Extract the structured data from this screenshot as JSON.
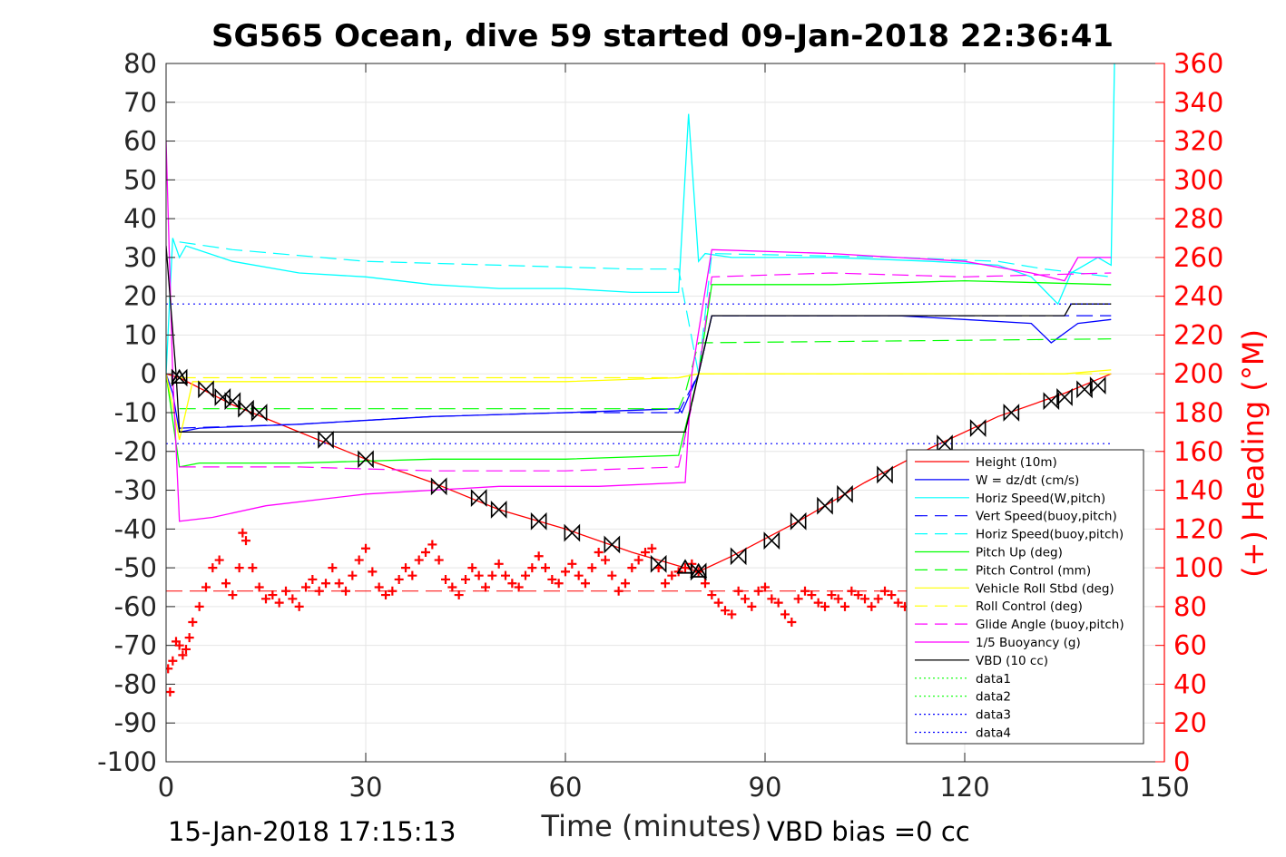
{
  "chart_data": {
    "type": "line",
    "title": "SG565 Ocean, dive 59 started 09-Jan-2018 22:36:41",
    "xlabel": "Time (minutes)",
    "ylabel_right": "(+) Heading (°M)",
    "xlim": [
      0,
      150
    ],
    "ylim_left": [
      -100,
      80
    ],
    "ylim_right": [
      0,
      360
    ],
    "xticks": [
      0,
      30,
      60,
      90,
      120,
      150
    ],
    "yticks_left": [
      80,
      70,
      60,
      50,
      40,
      30,
      20,
      10,
      0,
      -10,
      -20,
      -30,
      -40,
      -50,
      -60,
      -70,
      -80,
      -90,
      -100
    ],
    "yticks_right": [
      360,
      340,
      320,
      300,
      280,
      260,
      240,
      220,
      200,
      180,
      160,
      140,
      120,
      100,
      80,
      60,
      40,
      20,
      0
    ],
    "grid": true,
    "legend_placement": "lower-right",
    "colors": {
      "axis": "#262626",
      "grid": "#e5e5e5",
      "heading": "#ff0000",
      "height": "#ff0000",
      "w": "#0000ff",
      "horiz": "#00ffff",
      "vert": "#0000ff",
      "pitch": "#00ff00",
      "roll": "#ffff00",
      "glide": "#ff00ff",
      "buoyancy": "#ff00ff",
      "vbd": "#000000",
      "data_green": "#00ff00",
      "data_blue": "#0000ff"
    },
    "series": [
      {
        "name": "Height (10m)",
        "color": "#ff0000",
        "style": "solid",
        "x": [
          0,
          2,
          10,
          20,
          30,
          40,
          50,
          60,
          70,
          78,
          80,
          85,
          95,
          105,
          115,
          125,
          135,
          142
        ],
        "y": [
          0,
          -1,
          -8,
          -15,
          -22,
          -28,
          -35,
          -40,
          -46,
          -50,
          -51,
          -47,
          -38,
          -28,
          -19,
          -11,
          -5,
          0
        ]
      },
      {
        "name": "W = dz/dt (cm/s)",
        "color": "#0000ff",
        "style": "solid",
        "x": [
          0,
          1,
          2,
          5,
          20,
          40,
          60,
          77,
          77.5,
          80,
          82,
          90,
          100,
          110,
          120,
          130,
          133,
          137,
          142
        ],
        "y": [
          0,
          -5,
          -15,
          -14,
          -13,
          -11,
          -10,
          -9,
          -10,
          0,
          15,
          15,
          15,
          15,
          14,
          13,
          8,
          13,
          14
        ]
      },
      {
        "name": "Horiz Speed(W,pitch)",
        "color": "#00ffff",
        "style": "solid",
        "x": [
          0,
          1,
          2,
          3,
          10,
          20,
          30,
          40,
          50,
          60,
          70,
          77,
          77.5,
          78.5,
          80,
          81,
          85,
          100,
          115,
          125,
          130,
          134,
          136,
          140,
          142,
          142.5
        ],
        "y": [
          0,
          35,
          30,
          33,
          29,
          26,
          25,
          23,
          22,
          22,
          21,
          21,
          36,
          67,
          29,
          31,
          30,
          30,
          29,
          28,
          25,
          18,
          26,
          30,
          28,
          80
        ]
      },
      {
        "name": "Vert Speed(buoy,pitch)",
        "color": "#0000ff",
        "style": "dash",
        "x": [
          2,
          20,
          40,
          60,
          77,
          80,
          82,
          142
        ],
        "y": [
          -14,
          -13,
          -11,
          -10,
          -10,
          0,
          15,
          15
        ]
      },
      {
        "name": "Horiz Speed(buoy,pitch)",
        "color": "#00ffff",
        "style": "dash",
        "x": [
          2,
          10,
          30,
          50,
          70,
          77,
          80,
          82,
          110,
          125,
          132,
          142
        ],
        "y": [
          34,
          32,
          29,
          28,
          27,
          27,
          0,
          31,
          30,
          29,
          27,
          25
        ]
      },
      {
        "name": "Pitch Up (deg)",
        "color": "#00ff00",
        "style": "solid",
        "x": [
          0,
          2,
          5,
          20,
          40,
          60,
          77,
          80,
          82,
          100,
          120,
          142
        ],
        "y": [
          0,
          -24,
          -23,
          -23,
          -22,
          -22,
          -21,
          0,
          23,
          23,
          24,
          23
        ]
      },
      {
        "name": "Pitch Control (mm)",
        "color": "#00ff00",
        "style": "dash",
        "x": [
          2,
          77,
          78,
          80,
          142
        ],
        "y": [
          -9,
          -9,
          -5,
          8,
          9
        ]
      },
      {
        "name": "Vehicle Roll Stbd (deg)",
        "color": "#ffff00",
        "style": "solid",
        "x": [
          0,
          2,
          4,
          20,
          40,
          60,
          77,
          80,
          100,
          120,
          135,
          142
        ],
        "y": [
          0,
          -17,
          -2,
          -2,
          -2,
          -2,
          -1,
          0,
          0,
          0,
          0,
          1
        ]
      },
      {
        "name": "Roll Control (deg)",
        "color": "#ffff00",
        "style": "dash",
        "x": [
          2,
          77,
          80,
          142
        ],
        "y": [
          -1,
          -1,
          0,
          0
        ]
      },
      {
        "name": "Glide Angle (buoy,pitch)",
        "color": "#ff00ff",
        "style": "dash",
        "x": [
          2,
          20,
          40,
          60,
          77,
          80,
          82,
          100,
          120,
          142
        ],
        "y": [
          -24,
          -24,
          -25,
          -25,
          -24,
          0,
          25,
          26,
          25,
          26
        ]
      },
      {
        "name": "1/5 Buoyancy (g)",
        "color": "#ff00ff",
        "style": "solid",
        "x": [
          0,
          1,
          2,
          7,
          15,
          30,
          50,
          65,
          78,
          79,
          82,
          100,
          120,
          130,
          135,
          137,
          142
        ],
        "y": [
          60,
          0,
          -38,
          -37,
          -34,
          -31,
          -29,
          -29,
          -28,
          0,
          32,
          31,
          29,
          26,
          24,
          30,
          30
        ]
      },
      {
        "name": "VBD (10 cc)",
        "color": "#000000",
        "style": "solid",
        "x": [
          0,
          1.5,
          2,
          77,
          78,
          80,
          82,
          135,
          136,
          142
        ],
        "y": [
          33,
          0,
          -15,
          -15,
          -15,
          0,
          15,
          15,
          18,
          18
        ]
      },
      {
        "name": "data1",
        "color": "#00ff00",
        "style": "dot",
        "x": [],
        "y": []
      },
      {
        "name": "data2",
        "color": "#00ff00",
        "style": "dot",
        "x": [],
        "y": []
      },
      {
        "name": "data3",
        "color": "#0000ff",
        "style": "dot",
        "x": [
          0,
          142
        ],
        "y": [
          18,
          18
        ]
      },
      {
        "name": "data4",
        "color": "#0000ff",
        "style": "dot",
        "x": [
          0,
          142
        ],
        "y": [
          -18,
          -18
        ]
      }
    ],
    "heading_reference": {
      "axis": "right",
      "value": 88,
      "color": "#ff0000",
      "style": "dash",
      "x": [
        0,
        142
      ]
    },
    "heading": {
      "axis": "right",
      "color": "#ff0000",
      "marker": "+",
      "points": [
        [
          0.3,
          48
        ],
        [
          0.6,
          36
        ],
        [
          1,
          52
        ],
        [
          1.5,
          62
        ],
        [
          2,
          60
        ],
        [
          2.5,
          55
        ],
        [
          3,
          58
        ],
        [
          3.5,
          64
        ],
        [
          4,
          72
        ],
        [
          5,
          80
        ],
        [
          6,
          90
        ],
        [
          7,
          100
        ],
        [
          8,
          104
        ],
        [
          9,
          92
        ],
        [
          10,
          86
        ],
        [
          11,
          100
        ],
        [
          11.5,
          118
        ],
        [
          12,
          114
        ],
        [
          13,
          100
        ],
        [
          14,
          90
        ],
        [
          15,
          84
        ],
        [
          16,
          86
        ],
        [
          17,
          82
        ],
        [
          18,
          88
        ],
        [
          19,
          84
        ],
        [
          20,
          80
        ],
        [
          21,
          90
        ],
        [
          22,
          94
        ],
        [
          23,
          88
        ],
        [
          24,
          92
        ],
        [
          25,
          100
        ],
        [
          26,
          92
        ],
        [
          27,
          88
        ],
        [
          28,
          96
        ],
        [
          29,
          104
        ],
        [
          30,
          110
        ],
        [
          31,
          98
        ],
        [
          32,
          90
        ],
        [
          33,
          86
        ],
        [
          34,
          88
        ],
        [
          35,
          94
        ],
        [
          36,
          100
        ],
        [
          37,
          96
        ],
        [
          38,
          104
        ],
        [
          39,
          108
        ],
        [
          40,
          112
        ],
        [
          41,
          104
        ],
        [
          42,
          94
        ],
        [
          43,
          90
        ],
        [
          44,
          86
        ],
        [
          45,
          94
        ],
        [
          46,
          100
        ],
        [
          47,
          96
        ],
        [
          48,
          90
        ],
        [
          49,
          96
        ],
        [
          50,
          102
        ],
        [
          51,
          96
        ],
        [
          52,
          92
        ],
        [
          53,
          90
        ],
        [
          54,
          96
        ],
        [
          55,
          100
        ],
        [
          56,
          106
        ],
        [
          57,
          100
        ],
        [
          58,
          94
        ],
        [
          59,
          92
        ],
        [
          60,
          98
        ],
        [
          61,
          102
        ],
        [
          62,
          96
        ],
        [
          63,
          92
        ],
        [
          64,
          100
        ],
        [
          65,
          108
        ],
        [
          66,
          104
        ],
        [
          67,
          96
        ],
        [
          68,
          88
        ],
        [
          69,
          92
        ],
        [
          70,
          100
        ],
        [
          71,
          104
        ],
        [
          72,
          108
        ],
        [
          73,
          110
        ],
        [
          74,
          100
        ],
        [
          75,
          92
        ],
        [
          76,
          96
        ],
        [
          77,
          98
        ],
        [
          78,
          100
        ],
        [
          79,
          102
        ],
        [
          80,
          98
        ],
        [
          81,
          92
        ],
        [
          82,
          86
        ],
        [
          83,
          82
        ],
        [
          84,
          78
        ],
        [
          85,
          76
        ],
        [
          86,
          88
        ],
        [
          87,
          84
        ],
        [
          88,
          80
        ],
        [
          89,
          88
        ],
        [
          90,
          90
        ],
        [
          91,
          84
        ],
        [
          92,
          82
        ],
        [
          93,
          76
        ],
        [
          94,
          72
        ],
        [
          95,
          84
        ],
        [
          96,
          88
        ],
        [
          97,
          86
        ],
        [
          98,
          82
        ],
        [
          99,
          80
        ],
        [
          100,
          86
        ],
        [
          101,
          84
        ],
        [
          102,
          80
        ],
        [
          103,
          88
        ],
        [
          104,
          86
        ],
        [
          105,
          84
        ],
        [
          106,
          80
        ],
        [
          107,
          84
        ],
        [
          108,
          88
        ],
        [
          109,
          86
        ],
        [
          110,
          82
        ],
        [
          111,
          80
        ]
      ]
    },
    "waypoints": {
      "color": "#000000",
      "descent": [
        [
          2,
          -1
        ],
        [
          6,
          -4
        ],
        [
          8.5,
          -6
        ],
        [
          10,
          -7
        ],
        [
          12,
          -9
        ],
        [
          14,
          -10
        ],
        [
          24,
          -17
        ],
        [
          30,
          -22
        ],
        [
          41,
          -29
        ],
        [
          47,
          -32
        ],
        [
          50,
          -35
        ],
        [
          56,
          -38
        ],
        [
          61,
          -41
        ],
        [
          67,
          -44
        ],
        [
          74,
          -49
        ],
        [
          80,
          -51
        ]
      ],
      "ascent": [
        [
          86,
          -47
        ],
        [
          91,
          -43
        ],
        [
          95,
          -38
        ],
        [
          99,
          -34
        ],
        [
          102,
          -31
        ],
        [
          108,
          -26
        ],
        [
          117,
          -18
        ],
        [
          122,
          -14
        ],
        [
          127,
          -10
        ],
        [
          133,
          -7
        ],
        [
          135,
          -6
        ],
        [
          138,
          -4
        ],
        [
          140,
          -3
        ]
      ],
      "apex_markers": [
        [
          2,
          -1
        ],
        [
          78,
          -50
        ],
        [
          80,
          -51
        ]
      ]
    },
    "footer_left": "15-Jan-2018 17:15:13",
    "footer_right": "VBD bias =0 cc"
  }
}
